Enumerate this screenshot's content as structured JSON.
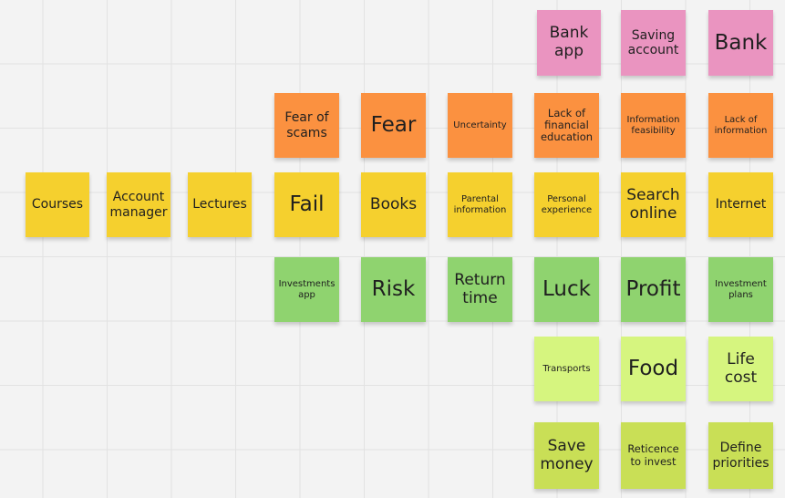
{
  "board": {
    "notes": [
      {
        "id": "bank-app",
        "text": "Bank\napp",
        "color": "#ea94c0"
      },
      {
        "id": "saving-account",
        "text": "Saving\naccount",
        "color": "#ea94c0"
      },
      {
        "id": "bank",
        "text": "Bank",
        "color": "#ea94c0"
      },
      {
        "id": "fear-of-scams",
        "text": "Fear of\nscams",
        "color": "#fb9140"
      },
      {
        "id": "fear",
        "text": "Fear",
        "color": "#fb9140"
      },
      {
        "id": "uncertainty",
        "text": "Uncertainty",
        "color": "#fb9140"
      },
      {
        "id": "lack-of-financial-education",
        "text": "Lack of\nfinancial\neducation",
        "color": "#fb9140"
      },
      {
        "id": "information-feasibility",
        "text": "Information\nfeasibility",
        "color": "#fb9140"
      },
      {
        "id": "lack-of-information",
        "text": "Lack of\ninformation",
        "color": "#fb9140"
      },
      {
        "id": "courses",
        "text": "Courses",
        "color": "#f5d02e"
      },
      {
        "id": "account-manager",
        "text": "Account\nmanager",
        "color": "#f5d02e"
      },
      {
        "id": "lectures",
        "text": "Lectures",
        "color": "#f5d02e"
      },
      {
        "id": "fail",
        "text": "Fail",
        "color": "#f5d02e"
      },
      {
        "id": "books",
        "text": "Books",
        "color": "#f5d02e"
      },
      {
        "id": "parental-information",
        "text": "Parental\ninformation",
        "color": "#f5d02e"
      },
      {
        "id": "personal-experience",
        "text": "Personal\nexperience",
        "color": "#f5d02e"
      },
      {
        "id": "search-online",
        "text": "Search\nonline",
        "color": "#f5d02e"
      },
      {
        "id": "internet",
        "text": "Internet",
        "color": "#f5d02e"
      },
      {
        "id": "investments-app",
        "text": "Investments\napp",
        "color": "#8fd36f"
      },
      {
        "id": "risk",
        "text": "Risk",
        "color": "#8fd36f"
      },
      {
        "id": "return-time",
        "text": "Return\ntime",
        "color": "#8fd36f"
      },
      {
        "id": "luck",
        "text": "Luck",
        "color": "#8fd36f"
      },
      {
        "id": "profit",
        "text": "Profit",
        "color": "#8fd36f"
      },
      {
        "id": "investment-plans",
        "text": "Investment\nplans",
        "color": "#8fd36f"
      },
      {
        "id": "transports",
        "text": "Transports",
        "color": "#d6f57f"
      },
      {
        "id": "food",
        "text": "Food",
        "color": "#d6f57f"
      },
      {
        "id": "life-cost",
        "text": "Life\ncost",
        "color": "#d6f57f"
      },
      {
        "id": "save-money",
        "text": "Save\nmoney",
        "color": "#c9df56"
      },
      {
        "id": "reticence-to-invest",
        "text": "Reticence\nto invest",
        "color": "#c9df56"
      },
      {
        "id": "define-priorities",
        "text": "Define\npriorities",
        "color": "#c9df56"
      }
    ]
  }
}
